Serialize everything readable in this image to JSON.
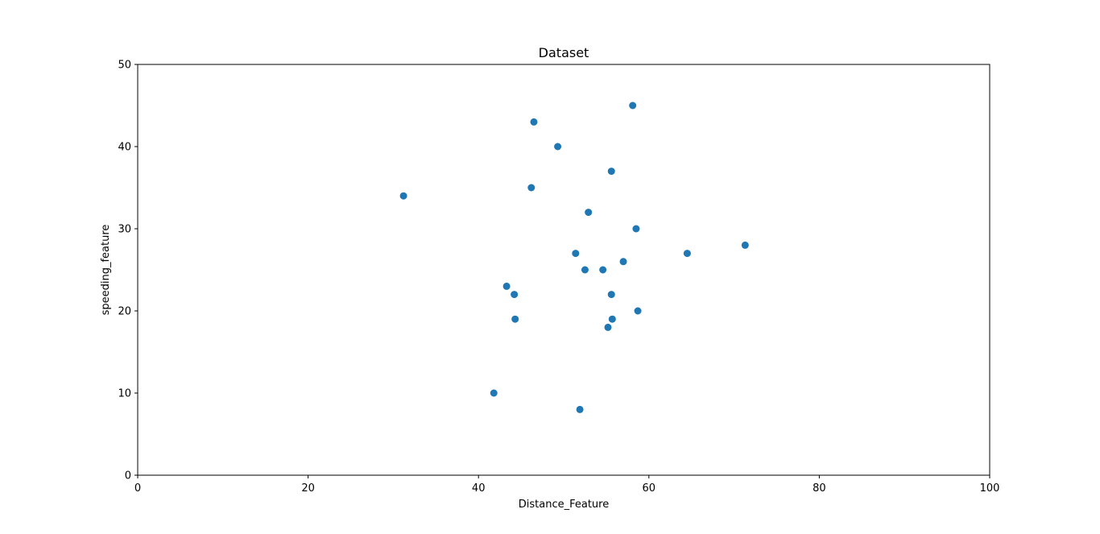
{
  "chart_data": {
    "type": "scatter",
    "title": "Dataset",
    "xlabel": "Distance_Feature",
    "ylabel": "speeding_feature",
    "xlim": [
      0,
      100
    ],
    "ylim": [
      0,
      50
    ],
    "xticks": [
      0,
      20,
      40,
      60,
      80,
      100
    ],
    "yticks": [
      0,
      10,
      20,
      30,
      40,
      50
    ],
    "grid": false,
    "marker_color": "#1f77b4",
    "series": [
      {
        "points": [
          {
            "x": 31.2,
            "y": 34
          },
          {
            "x": 41.8,
            "y": 10
          },
          {
            "x": 43.3,
            "y": 23
          },
          {
            "x": 44.2,
            "y": 22
          },
          {
            "x": 44.3,
            "y": 19
          },
          {
            "x": 46.2,
            "y": 35
          },
          {
            "x": 46.5,
            "y": 43
          },
          {
            "x": 49.3,
            "y": 40
          },
          {
            "x": 51.4,
            "y": 27
          },
          {
            "x": 51.9,
            "y": 8
          },
          {
            "x": 52.5,
            "y": 25
          },
          {
            "x": 52.9,
            "y": 32
          },
          {
            "x": 54.6,
            "y": 25
          },
          {
            "x": 55.2,
            "y": 18
          },
          {
            "x": 55.6,
            "y": 22
          },
          {
            "x": 55.6,
            "y": 37
          },
          {
            "x": 55.7,
            "y": 19
          },
          {
            "x": 57.0,
            "y": 26
          },
          {
            "x": 58.1,
            "y": 45
          },
          {
            "x": 58.5,
            "y": 30
          },
          {
            "x": 58.7,
            "y": 20
          },
          {
            "x": 64.5,
            "y": 27
          },
          {
            "x": 71.3,
            "y": 28
          }
        ]
      }
    ]
  }
}
